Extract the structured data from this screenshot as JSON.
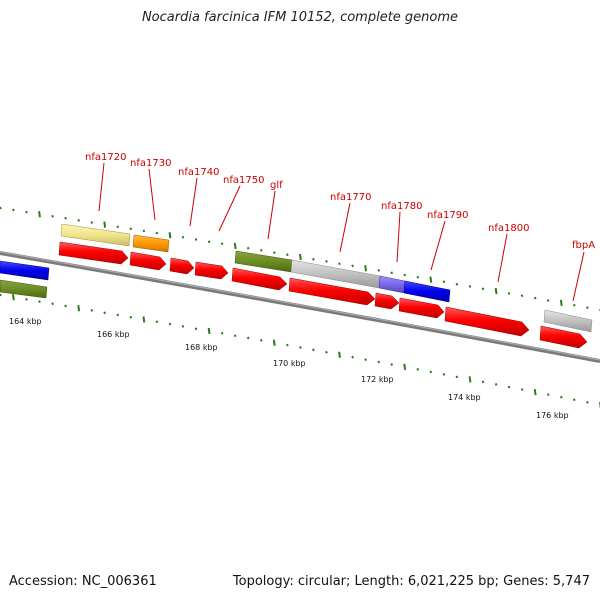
{
  "title": "Nocardia farcinica IFM 10152, complete genome",
  "accession_text": "Accession: NC_006361",
  "stats_text": "Topology: circular; Length: 6,021,225 bp; Genes: 5,747",
  "colors": {
    "label": "#cc0000",
    "cds": "#ff0000",
    "tick": "#2d7a1a",
    "backbone": "#8a8a8a"
  },
  "scale_ticks": [
    {
      "kbp": 164,
      "label": "164 kbp"
    },
    {
      "kbp": 166,
      "label": "166 kbp"
    },
    {
      "kbp": 168,
      "label": "168 kbp"
    },
    {
      "kbp": 170,
      "label": "170 kbp"
    },
    {
      "kbp": 172,
      "label": "172 kbp"
    },
    {
      "kbp": 174,
      "label": "174 kbp"
    },
    {
      "kbp": 176,
      "label": "176 kbp"
    }
  ],
  "gene_labels": [
    "nfa1720",
    "nfa1730",
    "nfa1740",
    "nfa1750",
    "glf",
    "nfa1770",
    "nfa1780",
    "nfa1790",
    "nfa1800",
    "fbpA"
  ]
}
